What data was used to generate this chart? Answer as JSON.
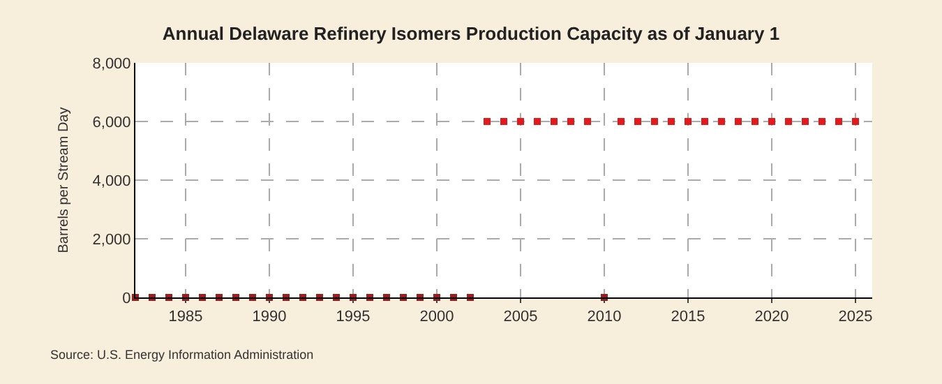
{
  "chart_data": {
    "type": "scatter",
    "title": "Annual Delaware Refinery Isomers Production Capacity as of January 1",
    "ylabel": "Barrels per Stream Day",
    "x": [
      1982,
      1983,
      1984,
      1985,
      1986,
      1987,
      1988,
      1989,
      1990,
      1991,
      1992,
      1993,
      1994,
      1995,
      1996,
      1997,
      1998,
      1999,
      2000,
      2001,
      2002,
      2003,
      2004,
      2005,
      2006,
      2007,
      2008,
      2009,
      2010,
      2011,
      2012,
      2013,
      2014,
      2015,
      2016,
      2017,
      2018,
      2019,
      2020,
      2021,
      2022,
      2023,
      2024,
      2025
    ],
    "values": [
      0,
      0,
      0,
      0,
      0,
      0,
      0,
      0,
      0,
      0,
      0,
      0,
      0,
      0,
      0,
      0,
      0,
      0,
      0,
      0,
      0,
      6000,
      6000,
      6000,
      6000,
      6000,
      6000,
      6000,
      0,
      6000,
      6000,
      6000,
      6000,
      6000,
      6000,
      6000,
      6000,
      6000,
      6000,
      6000,
      6000,
      6000,
      6000,
      6000
    ],
    "colors": [
      "#9b1c1c",
      "#9b1c1c",
      "#9b1c1c",
      "#9b1c1c",
      "#9b1c1c",
      "#9b1c1c",
      "#9b1c1c",
      "#9b1c1c",
      "#9b1c1c",
      "#9b1c1c",
      "#9b1c1c",
      "#9b1c1c",
      "#9b1c1c",
      "#9b1c1c",
      "#9b1c1c",
      "#9b1c1c",
      "#9b1c1c",
      "#9b1c1c",
      "#9b1c1c",
      "#9b1c1c",
      "#9b1c1c",
      "#e31a1c",
      "#e31a1c",
      "#e31a1c",
      "#e31a1c",
      "#e31a1c",
      "#e31a1c",
      "#e31a1c",
      "#9b1c1c",
      "#e31a1c",
      "#e31a1c",
      "#e31a1c",
      "#e31a1c",
      "#e31a1c",
      "#e31a1c",
      "#e31a1c",
      "#e31a1c",
      "#e31a1c",
      "#e31a1c",
      "#e31a1c",
      "#e31a1c",
      "#e31a1c",
      "#e31a1c",
      "#e31a1c"
    ],
    "xlim": [
      1982,
      2026
    ],
    "xticks": [
      1985,
      1990,
      1995,
      2000,
      2005,
      2010,
      2015,
      2020,
      2025
    ],
    "ylim": [
      0,
      8000
    ],
    "yticks": [
      {
        "value": 0,
        "label": "0"
      },
      {
        "value": 2000,
        "label": "2,000"
      },
      {
        "value": 4000,
        "label": "4,000"
      },
      {
        "value": 6000,
        "label": "6,000"
      },
      {
        "value": 8000,
        "label": "8,000"
      }
    ],
    "grid": true,
    "marker": "square",
    "legend": false,
    "annotations": [
      "Source: U.S. Energy Information Administration"
    ]
  }
}
